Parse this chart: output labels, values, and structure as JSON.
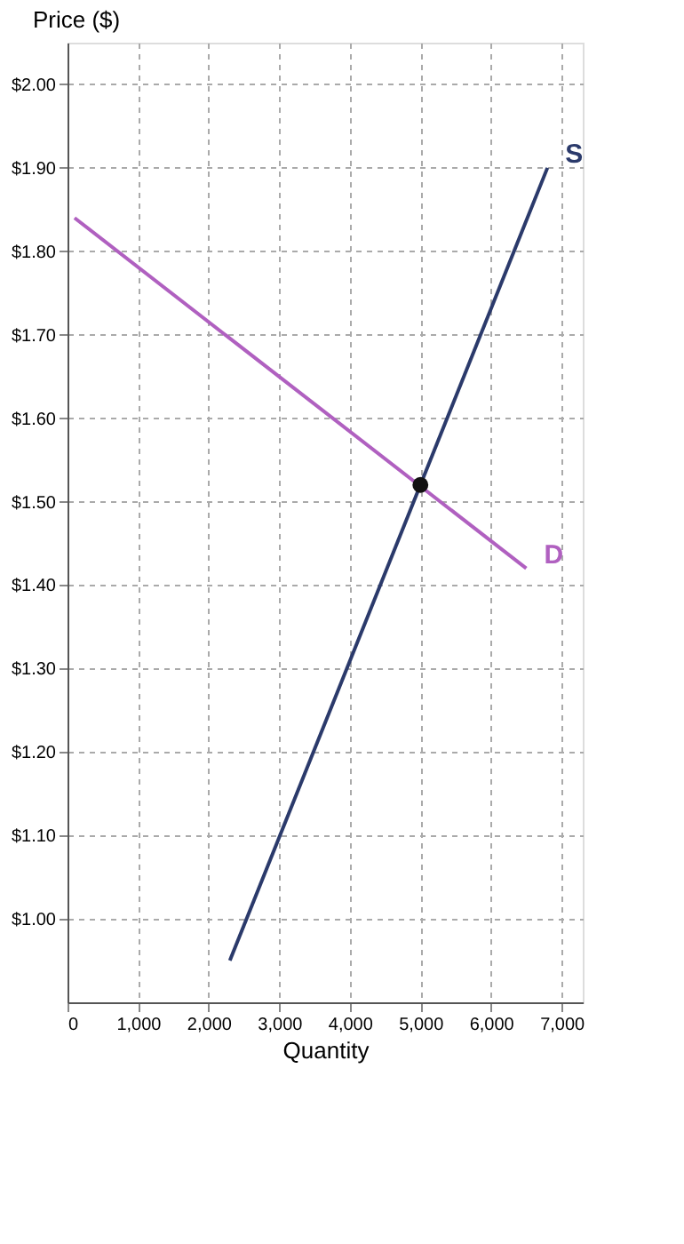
{
  "chart_data": {
    "type": "line",
    "xlabel": "Quantity",
    "ylabel": "Price ($)",
    "xlim": [
      0,
      7300
    ],
    "ylim": [
      0.9,
      2.05
    ],
    "xticks": [
      0,
      {
        "value": 1000,
        "label": "1,000"
      },
      {
        "value": 2000,
        "label": "2,000"
      },
      {
        "value": 3000,
        "label": "3,000"
      },
      {
        "value": 4000,
        "label": "4,000"
      },
      {
        "value": 5000,
        "label": "5,000"
      },
      {
        "value": 6000,
        "label": "6,000"
      },
      {
        "value": 7000,
        "label": "7,000"
      }
    ],
    "yticks": [
      {
        "value": 1.0,
        "label": "$1.00"
      },
      {
        "value": 1.1,
        "label": "$1.10"
      },
      {
        "value": 1.2,
        "label": "$1.20"
      },
      {
        "value": 1.3,
        "label": "$1.30"
      },
      {
        "value": 1.4,
        "label": "$1.40"
      },
      {
        "value": 1.5,
        "label": "$1.50"
      },
      {
        "value": 1.6,
        "label": "$1.60"
      },
      {
        "value": 1.7,
        "label": "$1.70"
      },
      {
        "value": 1.8,
        "label": "$1.80"
      },
      {
        "value": 1.9,
        "label": "$1.90"
      },
      {
        "value": 2.0,
        "label": "$2.00"
      }
    ],
    "grid": true,
    "line_style": "solid",
    "marker": "none",
    "series": [
      {
        "name": "S",
        "color": "#2b3a6b",
        "x": [
          2300,
          6800
        ],
        "values": [
          0.95,
          1.9
        ]
      },
      {
        "name": "D",
        "color": "#b060c0",
        "x": [
          100,
          6500
        ],
        "values": [
          1.84,
          1.42
        ]
      },
      {
        "type": "scatter",
        "color": "#111111",
        "x": [
          5000
        ],
        "values": [
          1.52
        ],
        "marker": "circle"
      }
    ]
  }
}
